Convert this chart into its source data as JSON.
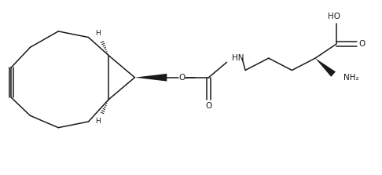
{
  "line_color": "#1a1a1a",
  "text_color": "#1a1a1a",
  "background": "#ffffff",
  "figsize": [
    4.86,
    2.23
  ],
  "dpi": 100,
  "lw": 1.1,
  "xlim": [
    0,
    9.5
  ],
  "ylim": [
    0,
    4.2
  ]
}
